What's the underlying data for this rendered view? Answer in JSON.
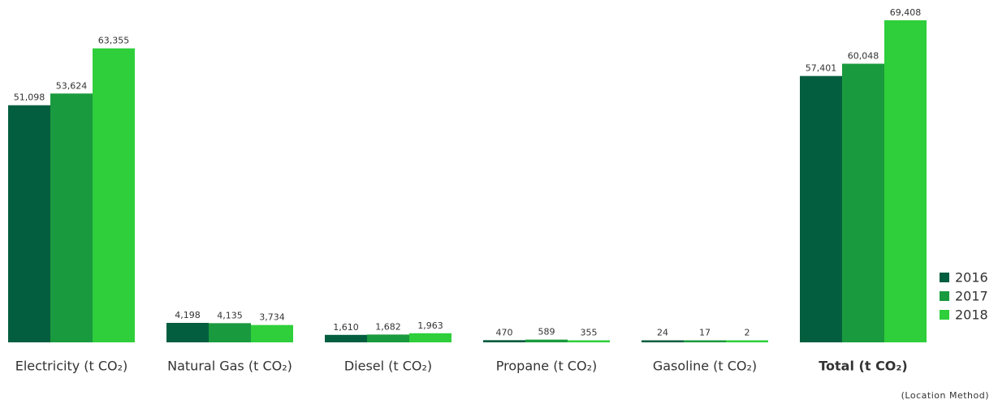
{
  "chart_data": {
    "type": "bar",
    "categories": [
      "Electricity (t CO₂)",
      "Natural Gas (t CO₂)",
      "Diesel (t CO₂)",
      "Propane (t CO₂)",
      "Gasoline (t CO₂)",
      "Total (t CO₂)"
    ],
    "series": [
      {
        "name": "2016",
        "color": "#035e3f",
        "values": [
          51098,
          4198,
          1610,
          470,
          24,
          57401
        ],
        "value_labels": [
          "51,098",
          "4,198",
          "1,610",
          "470",
          "24",
          "57,401"
        ]
      },
      {
        "name": "2017",
        "color": "#1a9a3e",
        "values": [
          53624,
          4135,
          1682,
          589,
          17,
          60048
        ],
        "value_labels": [
          "53,624",
          "4,135",
          "1,682",
          "589",
          "17",
          "60,048"
        ]
      },
      {
        "name": "2018",
        "color": "#2ecf3a",
        "values": [
          63355,
          3734,
          1963,
          355,
          2,
          69408
        ],
        "value_labels": [
          "63,355",
          "3,734",
          "1,963",
          "355",
          "2",
          "69,408"
        ]
      }
    ],
    "legend": "lower right",
    "note": "(Location Method)"
  }
}
